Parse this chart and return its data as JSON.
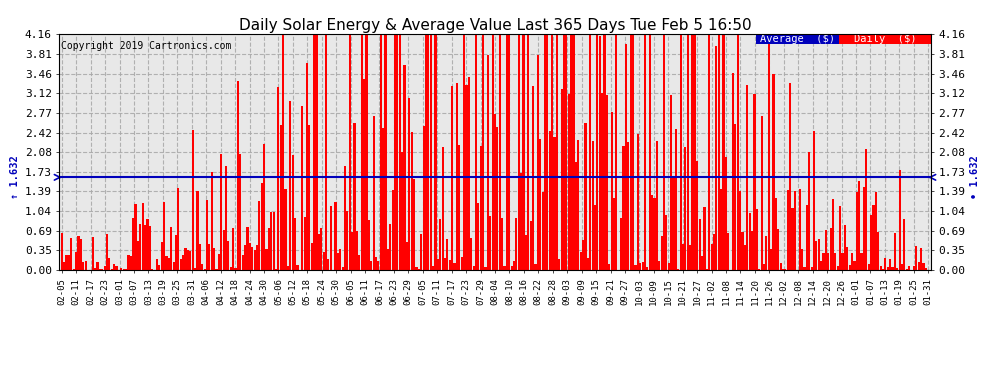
{
  "title": "Daily Solar Energy & Average Value Last 365 Days Tue Feb 5 16:50",
  "copyright": "Copyright 2019 Cartronics.com",
  "average_value": 1.632,
  "ylim": [
    0.0,
    4.16
  ],
  "yticks": [
    0.0,
    0.35,
    0.69,
    1.04,
    1.39,
    1.73,
    2.08,
    2.42,
    2.77,
    3.12,
    3.46,
    3.81,
    4.16
  ],
  "bar_color": "#ff0000",
  "avg_line_color": "#0000bb",
  "background_color": "#ffffff",
  "plot_bg_color": "#e8e8e8",
  "grid_color": "#aaaaaa",
  "legend_avg_bg": "#0000bb",
  "legend_daily_bg": "#ff0000",
  "legend_text_color": "#ffffff",
  "title_color": "#000000",
  "copyright_color": "#000000",
  "bottom_dashed_color": "#ff0000",
  "x_labels": [
    "02-05",
    "02-11",
    "02-17",
    "02-23",
    "03-01",
    "03-07",
    "03-13",
    "03-19",
    "03-25",
    "03-31",
    "04-06",
    "04-12",
    "04-18",
    "04-24",
    "04-30",
    "05-06",
    "05-12",
    "05-18",
    "05-24",
    "05-30",
    "06-05",
    "06-11",
    "06-17",
    "06-23",
    "06-29",
    "07-05",
    "07-11",
    "07-17",
    "07-23",
    "07-29",
    "08-04",
    "08-10",
    "08-16",
    "08-22",
    "08-28",
    "09-03",
    "09-09",
    "09-15",
    "09-21",
    "09-27",
    "10-03",
    "10-09",
    "10-15",
    "10-21",
    "10-27",
    "11-02",
    "11-08",
    "11-14",
    "11-20",
    "11-26",
    "12-02",
    "12-08",
    "12-14",
    "12-20",
    "12-26",
    "01-01",
    "01-07",
    "01-13",
    "01-19",
    "01-25",
    "01-31"
  ],
  "num_bars": 365,
  "figwidth": 9.9,
  "figheight": 3.75,
  "dpi": 100
}
